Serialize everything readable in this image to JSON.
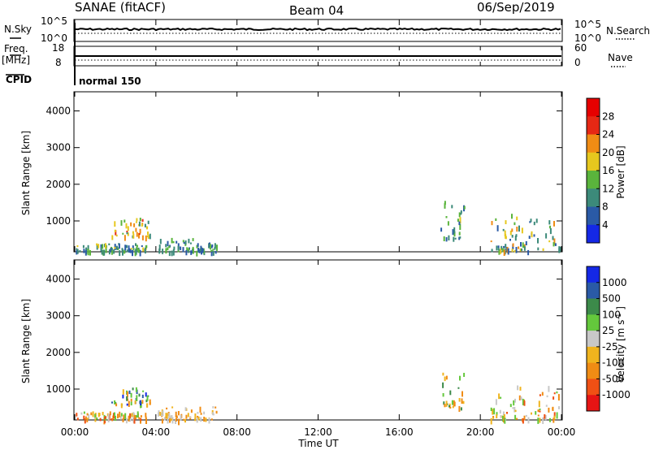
{
  "header": {
    "station": "SANAE (fitACF)",
    "beam": "Beam 04",
    "date": "06/Sep/2019"
  },
  "top_panels": {
    "nsky_label": "N.Sky",
    "nsearch_label": "N.Search",
    "nsky_ticks": [
      "10^5",
      "10^0"
    ],
    "nsearch_ticks": [
      "10^5",
      "10^0"
    ],
    "freq_label_1": "Freq.",
    "freq_label_2": "[MHz]",
    "freq_ticks": [
      "18",
      "8"
    ],
    "nave_label": "Nave",
    "nave_ticks": [
      "60",
      "0"
    ],
    "cpid_label": "CPID",
    "cpid_value": "normal 150"
  },
  "chart_data": [
    {
      "type": "heatmap",
      "name": "power",
      "ylabel": "Slant Range [km]",
      "xlabel": "",
      "ylim": [
        180,
        4500
      ],
      "yticks": [
        "1000",
        "2000",
        "3000",
        "4000"
      ],
      "ytick_values": [
        1000,
        2000,
        3000,
        4000
      ],
      "colorbar": {
        "label": "Power [dB]",
        "levels": [
          "4",
          "8",
          "12",
          "16",
          "20",
          "24",
          "28"
        ],
        "colors": [
          "#1428e6",
          "#2a5aa6",
          "#3c8a7a",
          "#5ab43c",
          "#e6c81e",
          "#f08c14",
          "#e62814",
          "#e60000"
        ]
      },
      "echo_clusters": [
        {
          "t": [
            0.05,
            3.5
          ],
          "r": [
            200,
            400
          ],
          "color_idx": [
            1,
            2,
            3,
            4,
            2
          ]
        },
        {
          "t": [
            1.8,
            3.7
          ],
          "r": [
            600,
            1100
          ],
          "color_idx": [
            4,
            3,
            5,
            6,
            2,
            4
          ]
        },
        {
          "t": [
            4.0,
            7.0
          ],
          "r": [
            180,
            550
          ],
          "color_idx": [
            1,
            2,
            3
          ]
        },
        {
          "t": [
            18.0,
            19.2
          ],
          "r": [
            500,
            1650
          ],
          "color_idx": [
            1,
            2,
            3,
            4
          ]
        },
        {
          "t": [
            20.5,
            23.9
          ],
          "r": [
            200,
            1200
          ],
          "color_idx": [
            1,
            2,
            3,
            4,
            5
          ]
        }
      ]
    },
    {
      "type": "heatmap",
      "name": "velocity",
      "ylabel": "Slant Range [km]",
      "xlabel": "Time UT",
      "xticks": [
        "00:00",
        "04:00",
        "08:00",
        "12:00",
        "16:00",
        "20:00",
        "00:00"
      ],
      "xtick_values": [
        0,
        4,
        8,
        12,
        16,
        20,
        24
      ],
      "ylim": [
        180,
        4500
      ],
      "yticks": [
        "1000",
        "2000",
        "3000",
        "4000"
      ],
      "ytick_values": [
        1000,
        2000,
        3000,
        4000
      ],
      "colorbar": {
        "label": "Velocity [m s^-1]",
        "levels": [
          "1000",
          "500",
          "100",
          "25",
          "-25",
          "-100",
          "-500",
          "-1000"
        ],
        "colors": [
          "#1428e6",
          "#2a5aa6",
          "#3c8a4a",
          "#64c83c",
          "#c8c8c8",
          "#f0b41e",
          "#f08c14",
          "#f05014",
          "#e61414"
        ]
      },
      "echo_clusters": [
        {
          "t": [
            0.05,
            3.5
          ],
          "r": [
            200,
            400
          ],
          "color_idx": [
            5,
            6,
            7,
            4,
            3
          ]
        },
        {
          "t": [
            1.8,
            3.7
          ],
          "r": [
            600,
            1100
          ],
          "color_idx": [
            5,
            6,
            2,
            3,
            1,
            0
          ]
        },
        {
          "t": [
            4.0,
            7.0
          ],
          "r": [
            180,
            550
          ],
          "color_idx": [
            5,
            6,
            4
          ]
        },
        {
          "t": [
            18.0,
            19.2
          ],
          "r": [
            500,
            1650
          ],
          "color_idx": [
            5,
            6,
            3,
            2
          ]
        },
        {
          "t": [
            20.5,
            23.9
          ],
          "r": [
            200,
            1200
          ],
          "color_idx": [
            5,
            6,
            7,
            4,
            3
          ]
        }
      ]
    }
  ]
}
